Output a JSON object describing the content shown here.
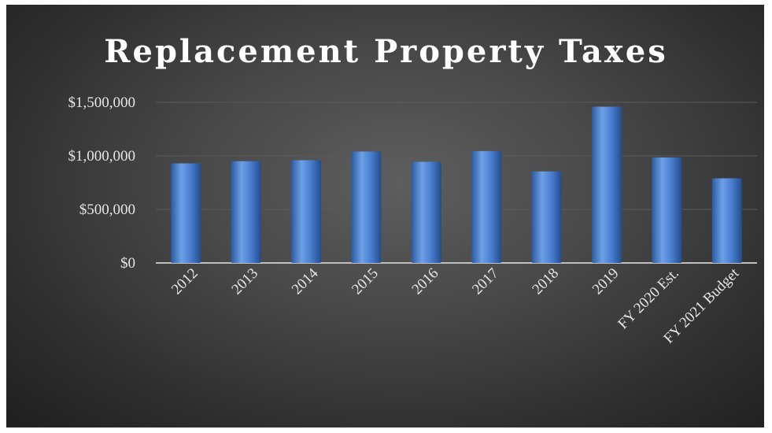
{
  "chart_data": {
    "type": "bar",
    "title": "Replacement Property Taxes",
    "categories": [
      "2012",
      "2013",
      "2014",
      "2015",
      "2016",
      "2017",
      "2018",
      "2019",
      "FY 2020 Est.",
      "FY 2021 Budget"
    ],
    "values": [
      930000,
      950000,
      960000,
      1040000,
      945000,
      1045000,
      855000,
      1460000,
      985000,
      790000
    ],
    "ylim": [
      0,
      1500000
    ],
    "yticks": [
      0,
      500000,
      1000000,
      1500000
    ],
    "ytick_labels": [
      "$0",
      "$500,000",
      "$1,000,000",
      "$1,500,000"
    ],
    "xlabel": "",
    "ylabel": "",
    "grid": true,
    "colors": {
      "bar": "#4a7fd0",
      "bar_light": "#6ea0e6",
      "bar_dark": "#2c5aa0",
      "background": "#3a3a3a",
      "text": "#ffffff"
    }
  }
}
